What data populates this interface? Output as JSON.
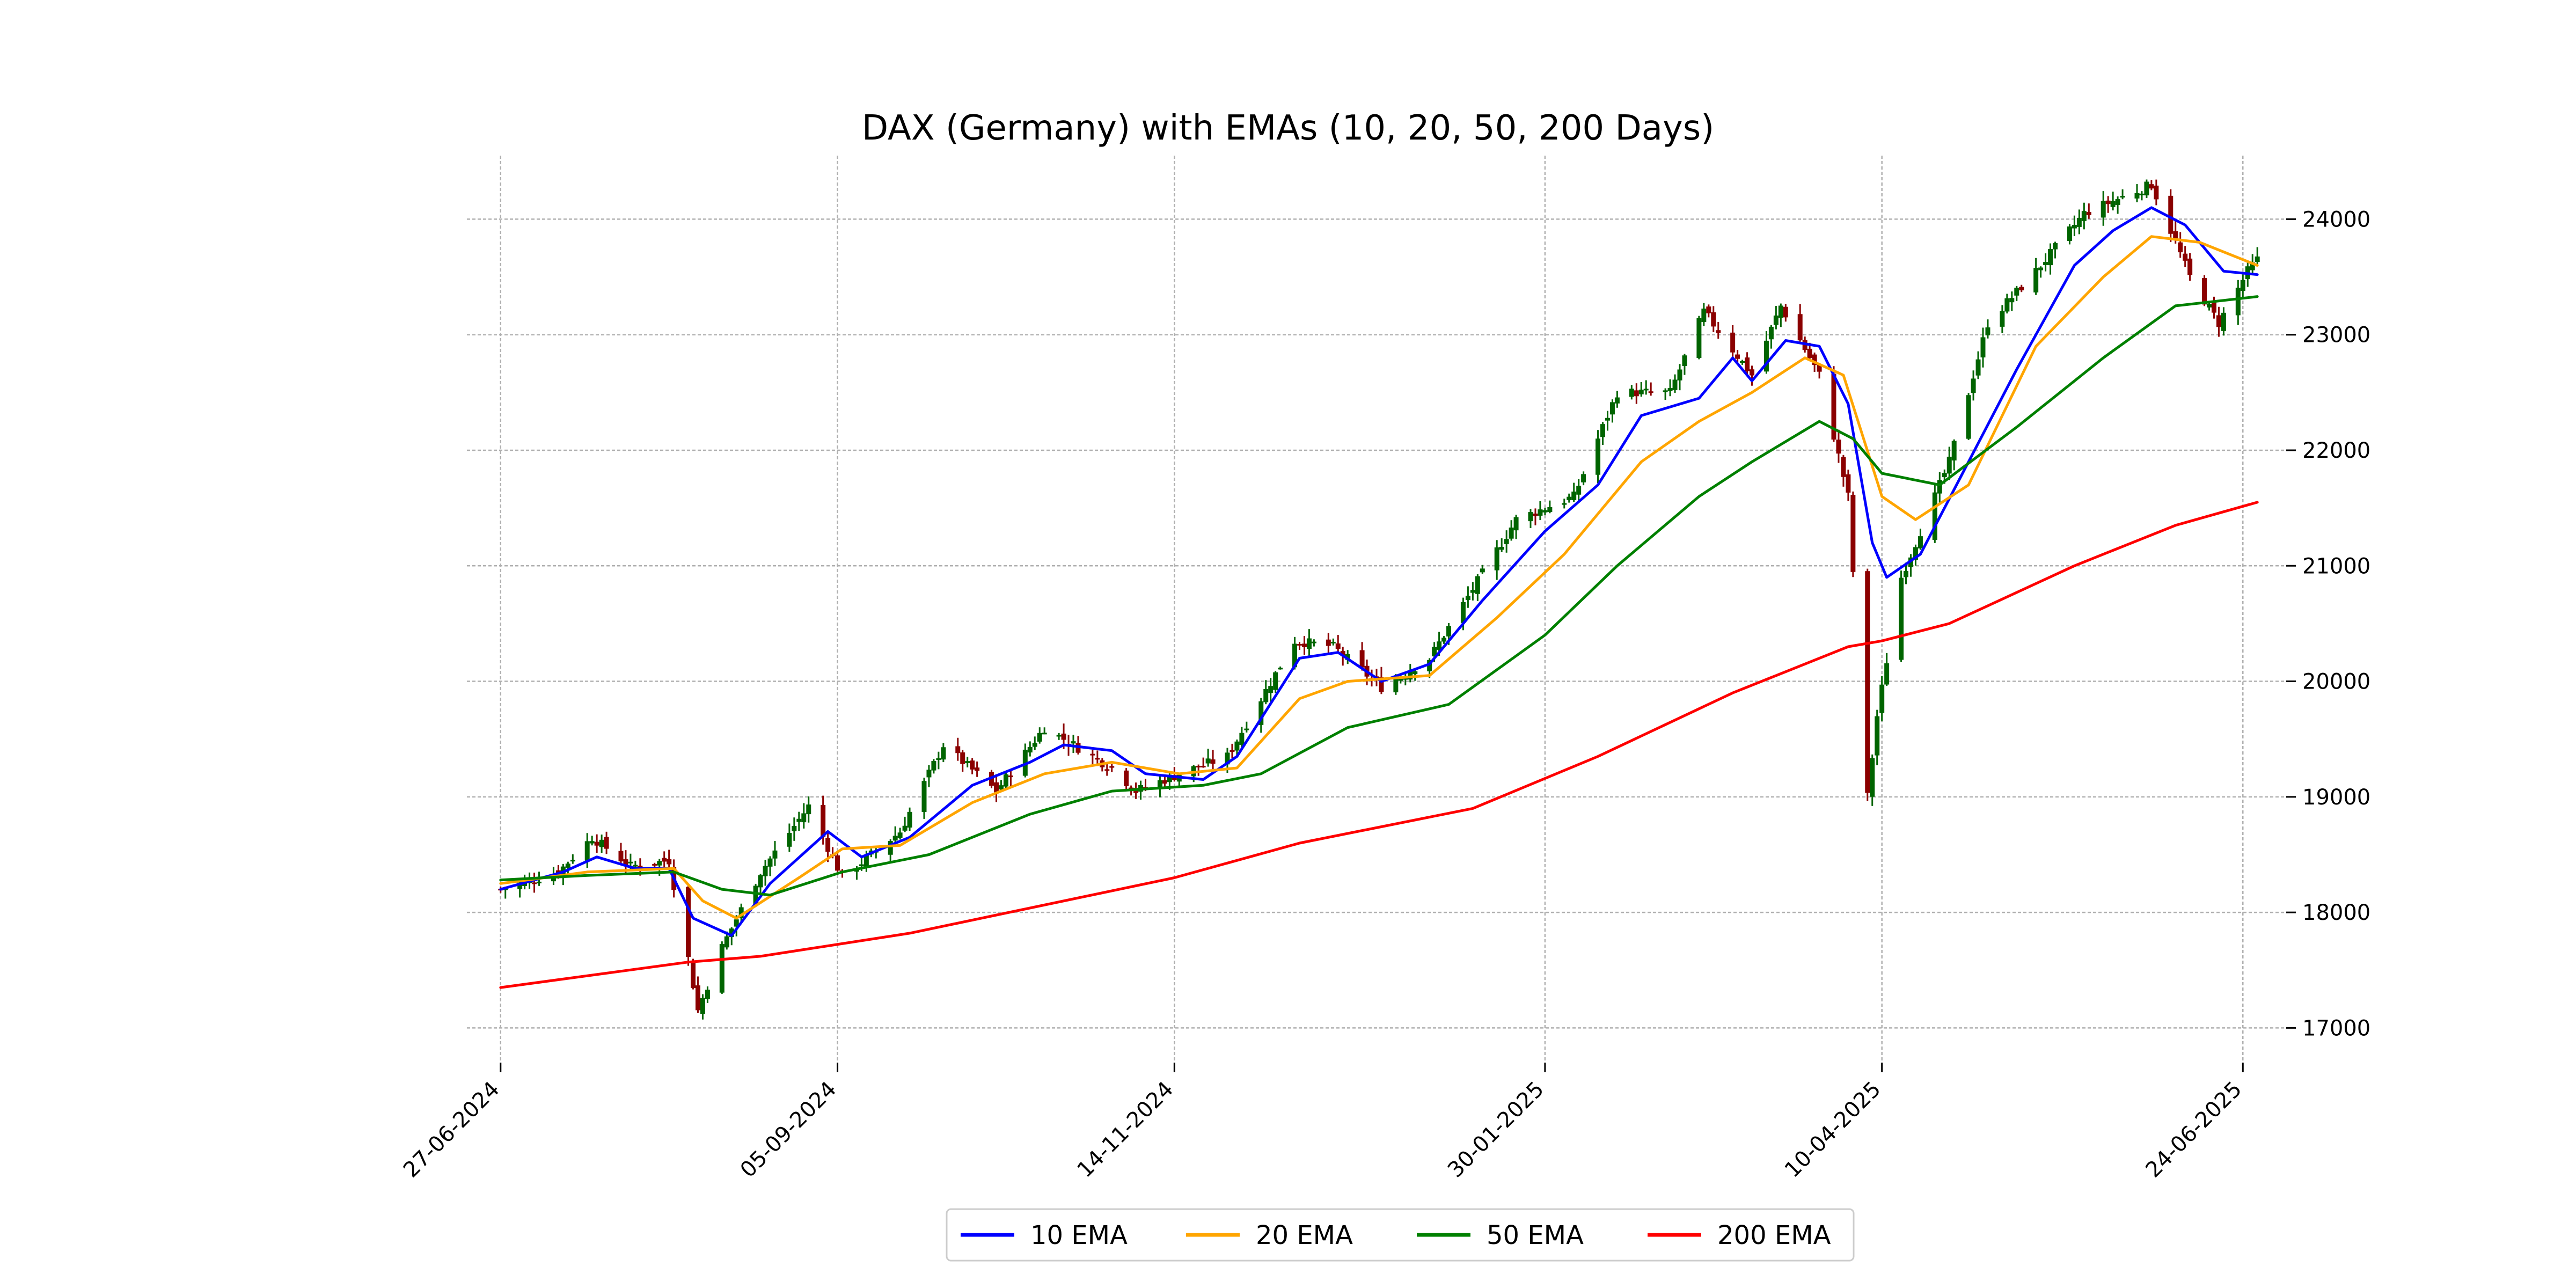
{
  "chart_data": {
    "type": "candlestick",
    "title": "DAX (Germany) with EMAs (10, 20, 50, 200 Days)",
    "ylim": [
      16700,
      24550
    ],
    "yticks": [
      17000,
      18000,
      19000,
      20000,
      21000,
      22000,
      23000,
      24000
    ],
    "y_axis_side": "right",
    "xlim": [
      "2024-06-20",
      "2025-07-03"
    ],
    "xticks": [
      "2024-06-27",
      "2024-09-05",
      "2024-11-14",
      "2025-01-30",
      "2025-04-10",
      "2025-06-24"
    ],
    "xtick_labels": [
      "27-06-2024",
      "05-09-2024",
      "14-11-2024",
      "30-01-2025",
      "10-04-2025",
      "24-06-2025"
    ],
    "grid": true,
    "legend_position": "bottom-center",
    "colors": {
      "up": "#006400",
      "down": "#8b0000"
    },
    "price_anchors": [
      [
        "2024-06-27",
        18200
      ],
      [
        "2024-07-09",
        18350
      ],
      [
        "2024-07-16",
        18650
      ],
      [
        "2024-07-24",
        18400
      ],
      [
        "2024-08-01",
        18450
      ],
      [
        "2024-08-05",
        17600
      ],
      [
        "2024-08-07",
        17150
      ],
      [
        "2024-08-12",
        17700
      ],
      [
        "2024-08-20",
        18350
      ],
      [
        "2024-08-30",
        18920
      ],
      [
        "2024-09-06",
        18300
      ],
      [
        "2024-09-18",
        18700
      ],
      [
        "2024-09-27",
        19450
      ],
      [
        "2024-10-08",
        19050
      ],
      [
        "2024-10-18",
        19600
      ],
      [
        "2024-11-01",
        19250
      ],
      [
        "2024-11-06",
        19050
      ],
      [
        "2024-11-15",
        19200
      ],
      [
        "2024-11-25",
        19350
      ],
      [
        "2024-12-09",
        20350
      ],
      [
        "2024-12-17",
        20300
      ],
      [
        "2024-12-27",
        19950
      ],
      [
        "2025-01-06",
        20200
      ],
      [
        "2025-01-24",
        21400
      ],
      [
        "2025-02-05",
        21600
      ],
      [
        "2025-02-14",
        22500
      ],
      [
        "2025-02-25",
        22500
      ],
      [
        "2025-03-04",
        23200
      ],
      [
        "2025-03-14",
        22650
      ],
      [
        "2025-03-20",
        23250
      ],
      [
        "2025-03-28",
        22650
      ],
      [
        "2025-04-03",
        21600
      ],
      [
        "2025-04-07",
        19000
      ],
      [
        "2025-04-09",
        19700
      ],
      [
        "2025-04-14",
        20900
      ],
      [
        "2025-04-24",
        21900
      ],
      [
        "2025-05-02",
        23100
      ],
      [
        "2025-05-12",
        23550
      ],
      [
        "2025-05-22",
        24050
      ],
      [
        "2025-06-05",
        24300
      ],
      [
        "2025-06-13",
        23500
      ],
      [
        "2025-06-19",
        23100
      ],
      [
        "2025-06-25",
        23550
      ],
      [
        "2025-06-27",
        23650
      ]
    ],
    "series": [
      {
        "name": "10 EMA",
        "color": "#0000ff",
        "points": [
          [
            "2024-06-27",
            18200
          ],
          [
            "2024-07-10",
            18350
          ],
          [
            "2024-07-17",
            18480
          ],
          [
            "2024-07-25",
            18380
          ],
          [
            "2024-08-01",
            18380
          ],
          [
            "2024-08-06",
            17950
          ],
          [
            "2024-08-14",
            17800
          ],
          [
            "2024-08-22",
            18250
          ],
          [
            "2024-09-03",
            18700
          ],
          [
            "2024-09-10",
            18480
          ],
          [
            "2024-09-20",
            18650
          ],
          [
            "2024-10-03",
            19100
          ],
          [
            "2024-10-15",
            19300
          ],
          [
            "2024-10-22",
            19450
          ],
          [
            "2024-11-01",
            19400
          ],
          [
            "2024-11-08",
            19200
          ],
          [
            "2024-11-20",
            19150
          ],
          [
            "2024-11-27",
            19350
          ],
          [
            "2024-12-10",
            20200
          ],
          [
            "2024-12-18",
            20250
          ],
          [
            "2024-12-27",
            20000
          ],
          [
            "2025-01-06",
            20150
          ],
          [
            "2025-01-17",
            20700
          ],
          [
            "2025-01-30",
            21300
          ],
          [
            "2025-02-10",
            21700
          ],
          [
            "2025-02-19",
            22300
          ],
          [
            "2025-03-03",
            22450
          ],
          [
            "2025-03-10",
            22800
          ],
          [
            "2025-03-14",
            22600
          ],
          [
            "2025-03-21",
            22950
          ],
          [
            "2025-03-28",
            22900
          ],
          [
            "2025-04-03",
            22400
          ],
          [
            "2025-04-08",
            21200
          ],
          [
            "2025-04-11",
            20900
          ],
          [
            "2025-04-18",
            21100
          ],
          [
            "2025-04-28",
            21900
          ],
          [
            "2025-05-08",
            22700
          ],
          [
            "2025-05-20",
            23600
          ],
          [
            "2025-05-28",
            23900
          ],
          [
            "2025-06-05",
            24100
          ],
          [
            "2025-06-12",
            23950
          ],
          [
            "2025-06-20",
            23550
          ],
          [
            "2025-06-27",
            23520
          ]
        ]
      },
      {
        "name": "20 EMA",
        "color": "#ffa500",
        "points": [
          [
            "2024-06-27",
            18250
          ],
          [
            "2024-07-15",
            18350
          ],
          [
            "2024-08-02",
            18380
          ],
          [
            "2024-08-08",
            18100
          ],
          [
            "2024-08-15",
            17950
          ],
          [
            "2024-08-28",
            18300
          ],
          [
            "2024-09-06",
            18550
          ],
          [
            "2024-09-18",
            18580
          ],
          [
            "2024-10-03",
            18950
          ],
          [
            "2024-10-18",
            19200
          ],
          [
            "2024-11-01",
            19300
          ],
          [
            "2024-11-15",
            19200
          ],
          [
            "2024-11-27",
            19250
          ],
          [
            "2024-12-10",
            19850
          ],
          [
            "2024-12-20",
            20000
          ],
          [
            "2025-01-06",
            20050
          ],
          [
            "2025-01-20",
            20550
          ],
          [
            "2025-02-03",
            21100
          ],
          [
            "2025-02-19",
            21900
          ],
          [
            "2025-03-03",
            22250
          ],
          [
            "2025-03-14",
            22500
          ],
          [
            "2025-03-25",
            22800
          ],
          [
            "2025-04-02",
            22650
          ],
          [
            "2025-04-10",
            21600
          ],
          [
            "2025-04-17",
            21400
          ],
          [
            "2025-04-28",
            21700
          ],
          [
            "2025-05-12",
            22900
          ],
          [
            "2025-05-26",
            23500
          ],
          [
            "2025-06-05",
            23850
          ],
          [
            "2025-06-15",
            23800
          ],
          [
            "2025-06-27",
            23600
          ]
        ]
      },
      {
        "name": "50 EMA",
        "color": "#008000",
        "points": [
          [
            "2024-06-27",
            18280
          ],
          [
            "2024-07-15",
            18320
          ],
          [
            "2024-08-02",
            18350
          ],
          [
            "2024-08-12",
            18200
          ],
          [
            "2024-08-22",
            18150
          ],
          [
            "2024-09-06",
            18350
          ],
          [
            "2024-09-24",
            18500
          ],
          [
            "2024-10-15",
            18850
          ],
          [
            "2024-11-01",
            19050
          ],
          [
            "2024-11-20",
            19100
          ],
          [
            "2024-12-02",
            19200
          ],
          [
            "2024-12-20",
            19600
          ],
          [
            "2025-01-10",
            19800
          ],
          [
            "2025-01-30",
            20400
          ],
          [
            "2025-02-14",
            21000
          ],
          [
            "2025-03-03",
            21600
          ],
          [
            "2025-03-14",
            21900
          ],
          [
            "2025-03-28",
            22250
          ],
          [
            "2025-04-04",
            22100
          ],
          [
            "2025-04-10",
            21800
          ],
          [
            "2025-04-22",
            21700
          ],
          [
            "2025-05-08",
            22200
          ],
          [
            "2025-05-26",
            22800
          ],
          [
            "2025-06-10",
            23250
          ],
          [
            "2025-06-27",
            23330
          ]
        ]
      },
      {
        "name": "200 EMA",
        "color": "#ff0000",
        "points": [
          [
            "2024-06-27",
            17350
          ],
          [
            "2024-08-05",
            17570
          ],
          [
            "2024-08-20",
            17620
          ],
          [
            "2024-09-20",
            17820
          ],
          [
            "2024-11-14",
            18300
          ],
          [
            "2024-12-10",
            18600
          ],
          [
            "2025-01-15",
            18900
          ],
          [
            "2025-02-10",
            19350
          ],
          [
            "2025-03-10",
            19900
          ],
          [
            "2025-04-03",
            20300
          ],
          [
            "2025-04-10",
            20350
          ],
          [
            "2025-04-24",
            20500
          ],
          [
            "2025-05-20",
            21000
          ],
          [
            "2025-06-10",
            21350
          ],
          [
            "2025-06-27",
            21550
          ]
        ]
      }
    ]
  }
}
